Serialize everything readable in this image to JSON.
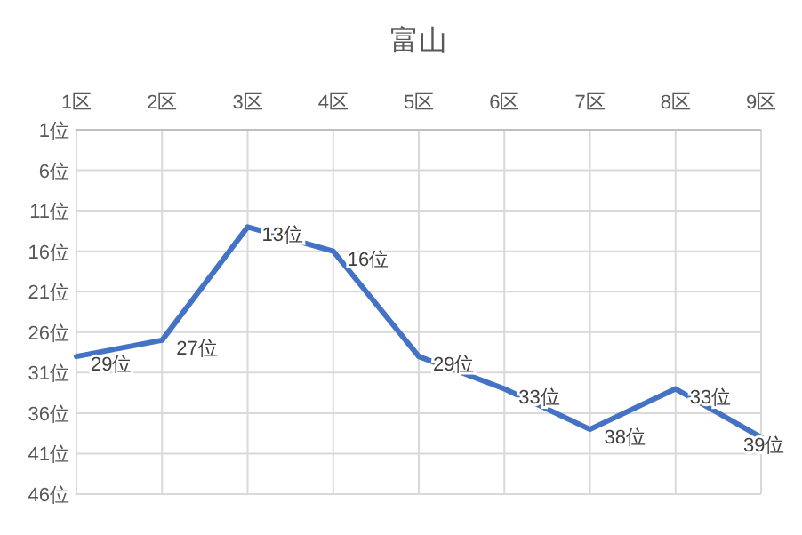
{
  "chart_data": {
    "type": "line",
    "title": "富山",
    "categories": [
      "1区",
      "2区",
      "3区",
      "4区",
      "5区",
      "6区",
      "7区",
      "8区",
      "9区"
    ],
    "values": [
      29,
      27,
      13,
      16,
      29,
      33,
      38,
      33,
      39
    ],
    "value_labels": [
      "29位",
      "27位",
      "13位",
      "16位",
      "29位",
      "33位",
      "38位",
      "33位",
      "39位"
    ],
    "color": "#4472c4",
    "ylim": [
      46,
      1
    ],
    "yticks": [
      {
        "value": 1,
        "label": "1位"
      },
      {
        "value": 6,
        "label": "6位"
      },
      {
        "value": 11,
        "label": "11位"
      },
      {
        "value": 16,
        "label": "16位"
      },
      {
        "value": 21,
        "label": "21位"
      },
      {
        "value": 26,
        "label": "26位"
      },
      {
        "value": 31,
        "label": "31位"
      },
      {
        "value": 36,
        "label": "36位"
      },
      {
        "value": 41,
        "label": "41位"
      },
      {
        "value": 46,
        "label": "46位"
      }
    ],
    "grid": true,
    "line_style": "solid"
  }
}
